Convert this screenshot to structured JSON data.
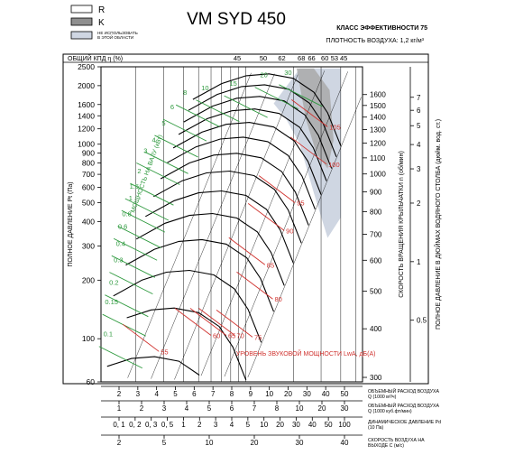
{
  "chart_data": {
    "type": "line",
    "title": "VM SYD 450",
    "efficiency_class": "КЛАСС ЭФФЕКТИВНОСТИ 75",
    "air_density": "ПЛОТНОСТЬ ВОЗДУХА: 1,2 кг/м³",
    "legend": [
      {
        "label": "R",
        "color": "#ffffff"
      },
      {
        "label": "K",
        "color": "#8f8f8f"
      },
      {
        "label": "НЕ ИСПОЛЬЗОВАТЬ В ЭТОЙ ОБЛАСТИ",
        "color": "#cfd6e2"
      }
    ],
    "efficiency_axis": {
      "label": "ОБЩИЙ КПД η (%)",
      "ticks": [
        {
          "label": "45",
          "q": 8.8
        },
        {
          "label": "50",
          "q": 12.9
        },
        {
          "label": "62",
          "q": 16.9
        },
        {
          "label": "68",
          "q": 22.5
        },
        {
          "label": "66",
          "q": 26.1
        },
        {
          "label": "60",
          "q": 31.7
        },
        {
          "label": "53",
          "q": 36.5
        },
        {
          "label": "45",
          "q": 41.8
        }
      ]
    },
    "pressure_axis": {
      "label": "ПОЛНОЕ ДАВЛЕНИЕ Pt (Па)",
      "ticks": [
        2500,
        2000,
        1600,
        1400,
        1200,
        1000,
        900,
        800,
        700,
        600,
        500,
        400,
        300,
        200,
        100,
        60
      ],
      "range": [
        60,
        2500
      ],
      "scale": "log"
    },
    "flow_axis": {
      "label": "ОБЪЕМНЫЙ РАСХОД ВОЗДУХА Q (1000 м³/ч)",
      "ticks": [
        "2",
        "3",
        "4",
        "5",
        "6",
        "7",
        "8",
        "9",
        "10",
        "20",
        "30",
        "40",
        "50"
      ],
      "range": [
        1.2,
        55
      ],
      "scale": "log"
    },
    "flow_axis_cfm": {
      "label": "ОБЪЕМНЫЙ РАСХОД ВОЗДУХА Q (1000 куб.фт/мин)",
      "ticks": [
        "1",
        "2",
        "3",
        "4",
        "5",
        "6",
        "7",
        "8",
        "10",
        "20",
        "30"
      ]
    },
    "dynamic_pressure_axis": {
      "label": "ДИНАМИЧЕСКОЕ ДАВЛЕНИЕ Pd (10 Па)",
      "ticks": [
        "0, 1",
        "0, 2",
        "0, 3",
        "0, 5",
        "1",
        "2",
        "3",
        "4",
        "5",
        "10",
        "20",
        "30",
        "40",
        "50",
        "100"
      ]
    },
    "velocity_axis": {
      "label": "СКОРОСТЬ ВОЗДУХА НА ВЫХОДЕ C (м/с)",
      "ticks": [
        "2",
        "5",
        "10",
        "20",
        "30",
        "40"
      ]
    },
    "speed_axis": {
      "label": "СКОРОСТЬ ВРАЩЕНИЯ КРЫЛЬЧАТКИ n (об/мин)",
      "ticks": [
        1600,
        1500,
        1400,
        1300,
        1200,
        1100,
        1000,
        900,
        800,
        700,
        600,
        500,
        400,
        300
      ]
    },
    "inch_axis": {
      "label": "ПОЛНОЕ ДАВЛЕНИЕ В ДЮЙМАХ ВОДЯНОГО СТОЛБА (дюйм. вод. ст.)",
      "ticks": [
        "7",
        "6",
        "5",
        "4",
        "3",
        "2",
        "1",
        "0.5"
      ]
    },
    "shaft_power_label": "МОЩНОСТЬ НА ВАЛУ (кВт)",
    "power_lines": [
      {
        "label": "8",
        "q": 4.1,
        "p": 1850
      },
      {
        "label": "10",
        "q": 5.5,
        "p": 1960
      },
      {
        "label": "15",
        "q": 8.3,
        "p": 2060
      },
      {
        "label": "20",
        "q": 13.0,
        "p": 2280
      },
      {
        "label": "30",
        "q": 18.5,
        "p": 2350
      },
      {
        "label": "6",
        "q": 3.4,
        "p": 1560
      },
      {
        "label": "5",
        "q": 3.0,
        "p": 1290
      },
      {
        "label": "4",
        "q": 2.6,
        "p": 1060
      },
      {
        "label": "3",
        "q": 2.3,
        "p": 930
      },
      {
        "label": "2",
        "q": 2.1,
        "p": 730
      },
      {
        "label": "1.5",
        "q": 1.95,
        "p": 610
      },
      {
        "label": "1",
        "q": 1.85,
        "p": 530
      },
      {
        "label": "0.8",
        "q": 1.75,
        "p": 440
      },
      {
        "label": "0.6",
        "q": 1.65,
        "p": 380
      },
      {
        "label": "0.4",
        "q": 1.6,
        "p": 310
      },
      {
        "label": "0.3",
        "q": 1.55,
        "p": 255
      },
      {
        "label": "0.2",
        "q": 1.45,
        "p": 195
      },
      {
        "label": "0.15",
        "q": 1.4,
        "p": 155
      },
      {
        "label": "0.1",
        "q": 1.33,
        "p": 106
      }
    ],
    "sound_label": "УРОВЕНЬ ЗВУКОВОЙ МОЩНОСТИ LwA, дБ(А)",
    "sound_lines": [
      {
        "label": "105",
        "q": 33.0,
        "p": 1230
      },
      {
        "label": "100",
        "q": 32.5,
        "p": 790
      },
      {
        "label": "95",
        "q": 20.5,
        "p": 500
      },
      {
        "label": "90",
        "q": 17.5,
        "p": 360
      },
      {
        "label": "85",
        "q": 13.2,
        "p": 240
      },
      {
        "label": "80",
        "q": 14.8,
        "p": 160
      },
      {
        "label": "75",
        "q": 11.0,
        "p": 102
      },
      {
        "label": "70",
        "q": 8.5,
        "p": 104
      },
      {
        "label": "65",
        "q": 7.5,
        "p": 104
      },
      {
        "label": "60",
        "q": 6.0,
        "p": 104
      },
      {
        "label": "55",
        "q": 2.8,
        "p": 86
      }
    ],
    "speed_curves_rpm": [
      1600,
      1500,
      1400,
      1300,
      1200,
      1100,
      1000,
      900,
      800,
      700,
      600,
      500,
      400,
      300
    ],
    "grid": true
  }
}
